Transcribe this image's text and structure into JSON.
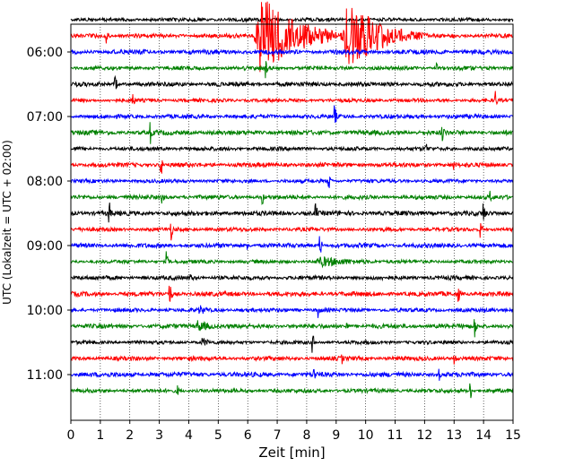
{
  "chart_data": {
    "type": "line",
    "xlabel": "Zeit  [min]",
    "ylabel": "UTC (Lokalzeit = UTC + 02:00)",
    "xlim": [
      0,
      15
    ],
    "x_ticks": [
      0,
      1,
      2,
      3,
      4,
      5,
      6,
      7,
      8,
      9,
      10,
      11,
      12,
      13,
      14,
      15
    ],
    "x_grid": "dotted",
    "trace_start_utc": "05:45",
    "trace_interval_min": 15,
    "trace_count": 24,
    "y_ticks": [
      "06:00",
      "07:00",
      "08:00",
      "09:00",
      "10:00",
      "11:00"
    ],
    "colors": [
      "#000000",
      "#ff0000",
      "#0000ff",
      "#008000"
    ],
    "events": [
      {
        "trace": 1,
        "x": 1.2,
        "amp": 0.55
      },
      {
        "trace": 1,
        "x": 6.2,
        "x_end": 9.0,
        "amp": 2.6
      },
      {
        "trace": 1,
        "x": 9.2,
        "x_end": 11.6,
        "amp": 2.3
      },
      {
        "trace": 3,
        "x": 6.6,
        "amp": 0.7
      },
      {
        "trace": 3,
        "x": 12.4,
        "amp": 0.45
      },
      {
        "trace": 4,
        "x": 1.5,
        "amp": 0.7
      },
      {
        "trace": 5,
        "x": 2.1,
        "amp": 0.65
      },
      {
        "trace": 5,
        "x": 14.4,
        "amp": 0.7
      },
      {
        "trace": 6,
        "x": 8.95,
        "amp": 0.85
      },
      {
        "trace": 7,
        "x": 2.7,
        "amp": 0.75
      },
      {
        "trace": 7,
        "x": 12.6,
        "amp": 0.8
      },
      {
        "trace": 8,
        "x": 12.05,
        "amp": 0.5
      },
      {
        "trace": 9,
        "x": 3.05,
        "amp": 1.0
      },
      {
        "trace": 9,
        "x": 13.0,
        "amp": 0.5
      },
      {
        "trace": 10,
        "x": 8.75,
        "amp": 0.7
      },
      {
        "trace": 11,
        "x": 3.1,
        "amp": 0.7
      },
      {
        "trace": 11,
        "x": 6.5,
        "amp": 0.55
      },
      {
        "trace": 11,
        "x": 14.2,
        "amp": 0.6
      },
      {
        "trace": 12,
        "x": 1.3,
        "amp": 0.9
      },
      {
        "trace": 12,
        "x": 8.3,
        "amp": 0.85
      },
      {
        "trace": 12,
        "x": 14.0,
        "amp": 1.0
      },
      {
        "trace": 13,
        "x": 3.4,
        "amp": 0.75
      },
      {
        "trace": 13,
        "x": 13.9,
        "amp": 0.7
      },
      {
        "trace": 14,
        "x": 8.45,
        "amp": 0.85
      },
      {
        "trace": 14,
        "x": 6.0,
        "amp": 0.4
      },
      {
        "trace": 15,
        "x": 3.25,
        "amp": 0.65
      },
      {
        "trace": 15,
        "x": 8.2,
        "x_end": 11.4,
        "amp": 0.35
      },
      {
        "trace": 16,
        "x": 4.0,
        "x_end": 4.3,
        "amp": 0.35
      },
      {
        "trace": 17,
        "x": 3.35,
        "amp": 1.05
      },
      {
        "trace": 17,
        "x": 13.15,
        "amp": 0.6
      },
      {
        "trace": 18,
        "x": 8.4,
        "amp": 0.8
      },
      {
        "trace": 18,
        "x": 4.3,
        "x_end": 5.0,
        "amp": 0.35
      },
      {
        "trace": 19,
        "x": 13.7,
        "amp": 0.85
      },
      {
        "trace": 19,
        "x": 9.35,
        "amp": 0.4
      },
      {
        "trace": 19,
        "x": 4.2,
        "x_end": 5.4,
        "amp": 0.4
      },
      {
        "trace": 20,
        "x": 8.2,
        "amp": 0.7
      },
      {
        "trace": 20,
        "x": 4.4,
        "x_end": 5.0,
        "amp": 0.35
      },
      {
        "trace": 21,
        "x": 13.0,
        "amp": 0.6
      },
      {
        "trace": 21,
        "x": 9.2,
        "amp": 0.4
      },
      {
        "trace": 22,
        "x": 8.25,
        "amp": 0.65
      },
      {
        "trace": 22,
        "x": 12.5,
        "amp": 0.4
      },
      {
        "trace": 23,
        "x": 13.55,
        "amp": 0.7
      },
      {
        "trace": 23,
        "x": 3.6,
        "amp": 0.5
      }
    ]
  }
}
